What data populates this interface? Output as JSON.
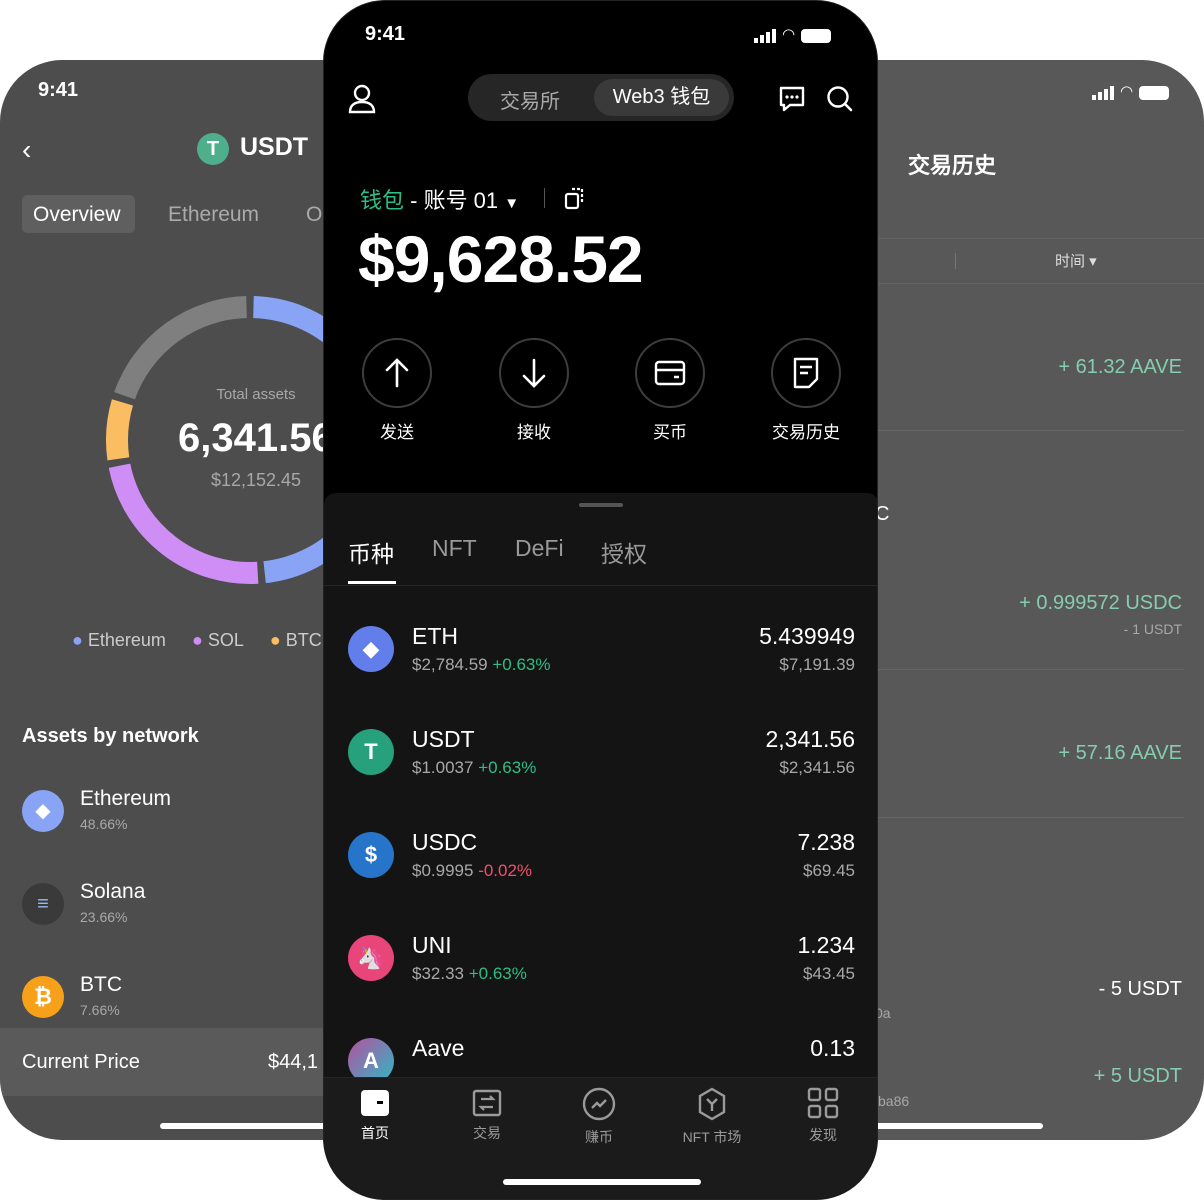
{
  "left_phone": {
    "time": "9:41",
    "title": "USDT",
    "tabs": [
      "Overview",
      "Ethereum",
      "O"
    ],
    "chart_data": {
      "type": "pie",
      "series": [
        {
          "name": "Ethereum",
          "value": 48.66,
          "color": "#8aa4f5"
        },
        {
          "name": "SOL",
          "value": 23.66,
          "color": "#cf8ef5"
        },
        {
          "name": "BTC",
          "value": 7.66,
          "color": "#fbbd62"
        },
        {
          "value": 20.02,
          "color": "#7f7f7f"
        }
      ],
      "legend": [
        "Ethereum",
        "SOL",
        "BTC"
      ],
      "legend_placement": "bottom"
    },
    "total_label": "Total assets",
    "total_value": "6,341.56",
    "total_usd": "$12,152.45",
    "section_title": "Assets by network",
    "networks": [
      {
        "name": "Ethereum",
        "pct": "48.66%"
      },
      {
        "name": "Solana",
        "pct": "23.66%"
      },
      {
        "name": "BTC",
        "pct": "7.66%"
      }
    ],
    "current_price_label": "Current Price",
    "current_price_value": "$44,1"
  },
  "center_phone": {
    "time": "9:41",
    "segments": [
      "交易所",
      "Web3 钱包"
    ],
    "wallet_label": "钱包",
    "account": " - 账号 01",
    "balance": "$9,628.52",
    "actions": [
      "发送",
      "接收",
      "买币",
      "交易历史"
    ],
    "tabs": [
      "币种",
      "NFT",
      "DeFi",
      "授权"
    ],
    "tokens": [
      {
        "symbol": "ETH",
        "price": "$2,784.59",
        "change": "+0.63%",
        "amount": "5.439949",
        "value": "$7,191.39",
        "color": "#627eea"
      },
      {
        "symbol": "USDT",
        "price": "$1.0037",
        "change": "+0.63%",
        "amount": "2,341.56",
        "value": "$2,341.56",
        "color": "#26a17b"
      },
      {
        "symbol": "USDC",
        "price": "$0.9995",
        "change": "-0.02%",
        "amount": "7.238",
        "value": "$69.45",
        "color": "#2775ca"
      },
      {
        "symbol": "UNI",
        "price": "$32.33",
        "change": "+0.63%",
        "amount": "1.234",
        "value": "$43.45",
        "color": "#e8457a"
      },
      {
        "symbol": "Aave",
        "price": "",
        "change": "",
        "amount": "0.13",
        "value": "",
        "color": "#8a5fb8"
      }
    ],
    "nav": [
      "首页",
      "交易",
      "赚币",
      "NFT 市场",
      "发现"
    ]
  },
  "right_phone": {
    "title": "交易历史",
    "filter_time": "时间",
    "transactions": [
      {
        "amount": "+ 61.32 AAVE",
        "sub": "",
        "type": "in"
      },
      {
        "amount": "+ 0.999572 USDC",
        "sub": "- 1 USDT",
        "type": "in"
      },
      {
        "amount": "+ 57.16 AAVE",
        "sub": "",
        "type": "in"
      },
      {
        "amount": "- 5 USDT",
        "sub": "",
        "type": "out"
      },
      {
        "amount": "+ 5 USDT",
        "sub": "",
        "type": "in"
      }
    ],
    "partial_texts": [
      "C",
      "0a",
      "ba86"
    ]
  }
}
